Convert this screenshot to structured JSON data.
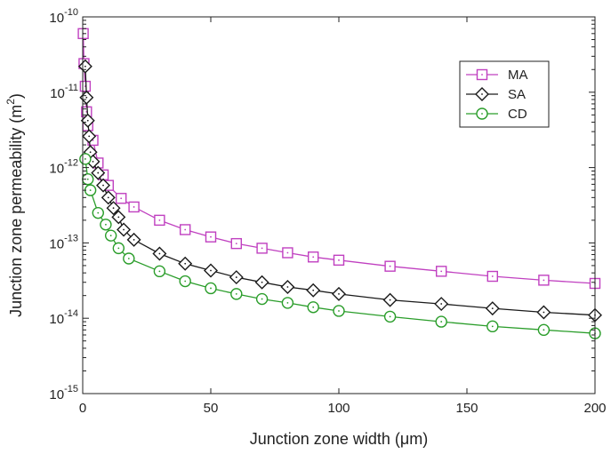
{
  "chart_data": {
    "type": "line",
    "xlabel": "Junction zone width (μm)",
    "ylabel_prefix": "Junction zone permeability (m",
    "ylabel_sup": "2",
    "ylabel_suffix": ")",
    "xlim": [
      0,
      200
    ],
    "ylim": [
      1e-15,
      1e-10
    ],
    "yscale": "log",
    "x_ticks": [
      {
        "value": 0,
        "label": "0"
      },
      {
        "value": 50,
        "label": "50"
      },
      {
        "value": 100,
        "label": "100"
      },
      {
        "value": 150,
        "label": "150"
      },
      {
        "value": 200,
        "label": "200"
      }
    ],
    "y_ticks": [
      {
        "value": 1e-10,
        "base": "10",
        "exp": "-10"
      },
      {
        "value": 1e-11,
        "base": "10",
        "exp": "-11"
      },
      {
        "value": 1e-12,
        "base": "10",
        "exp": "-12"
      },
      {
        "value": 1e-13,
        "base": "10",
        "exp": "-13"
      },
      {
        "value": 1e-14,
        "base": "10",
        "exp": "-14"
      },
      {
        "value": 1e-15,
        "base": "10",
        "exp": "-15"
      }
    ],
    "legend_position": "top-right",
    "series": [
      {
        "name": "MA",
        "color": "#c040c0",
        "marker": "square",
        "points": [
          [
            0.2,
            6e-11
          ],
          [
            0.5,
            2.4e-11
          ],
          [
            1,
            1.2e-11
          ],
          [
            1.5,
            5.5e-12
          ],
          [
            2,
            3.6e-12
          ],
          [
            4,
            2.3e-12
          ],
          [
            6,
            1.15e-12
          ],
          [
            8,
            8e-13
          ],
          [
            10,
            5.8e-13
          ],
          [
            15,
            3.9e-13
          ],
          [
            20,
            3e-13
          ],
          [
            30,
            2e-13
          ],
          [
            40,
            1.5e-13
          ],
          [
            50,
            1.2e-13
          ],
          [
            60,
            9.8e-14
          ],
          [
            70,
            8.5e-14
          ],
          [
            80,
            7.4e-14
          ],
          [
            90,
            6.5e-14
          ],
          [
            100,
            5.9e-14
          ],
          [
            120,
            4.9e-14
          ],
          [
            140,
            4.2e-14
          ],
          [
            160,
            3.6e-14
          ],
          [
            180,
            3.2e-14
          ],
          [
            200,
            2.9e-14
          ]
        ]
      },
      {
        "name": "SA",
        "color": "#1a1a1a",
        "marker": "diamond",
        "points": [
          [
            1,
            2.2e-11
          ],
          [
            1.5,
            8.5e-12
          ],
          [
            2,
            4.2e-12
          ],
          [
            2.5,
            2.6e-12
          ],
          [
            3,
            1.6e-12
          ],
          [
            4,
            1.2e-12
          ],
          [
            6,
            8.5e-13
          ],
          [
            8,
            5.8e-13
          ],
          [
            10,
            4e-13
          ],
          [
            12,
            2.9e-13
          ],
          [
            14,
            2.2e-13
          ],
          [
            16,
            1.5e-13
          ],
          [
            20,
            1.1e-13
          ],
          [
            30,
            7.2e-14
          ],
          [
            40,
            5.3e-14
          ],
          [
            50,
            4.3e-14
          ],
          [
            60,
            3.5e-14
          ],
          [
            70,
            3e-14
          ],
          [
            80,
            2.6e-14
          ],
          [
            90,
            2.35e-14
          ],
          [
            100,
            2.1e-14
          ],
          [
            120,
            1.75e-14
          ],
          [
            140,
            1.55e-14
          ],
          [
            160,
            1.35e-14
          ],
          [
            180,
            1.2e-14
          ],
          [
            200,
            1.1e-14
          ]
        ]
      },
      {
        "name": "CD",
        "color": "#2a9d2a",
        "marker": "circle",
        "points": [
          [
            1,
            1.3e-12
          ],
          [
            2,
            7e-13
          ],
          [
            3,
            5e-13
          ],
          [
            6,
            2.5e-13
          ],
          [
            9,
            1.75e-13
          ],
          [
            11,
            1.25e-13
          ],
          [
            14,
            8.5e-14
          ],
          [
            18,
            6.2e-14
          ],
          [
            30,
            4.2e-14
          ],
          [
            40,
            3.1e-14
          ],
          [
            50,
            2.5e-14
          ],
          [
            60,
            2.1e-14
          ],
          [
            70,
            1.8e-14
          ],
          [
            80,
            1.6e-14
          ],
          [
            90,
            1.4e-14
          ],
          [
            100,
            1.25e-14
          ],
          [
            120,
            1.05e-14
          ],
          [
            140,
            9e-15
          ],
          [
            160,
            7.8e-15
          ],
          [
            180,
            7e-15
          ],
          [
            200,
            6.3e-15
          ]
        ]
      }
    ]
  }
}
